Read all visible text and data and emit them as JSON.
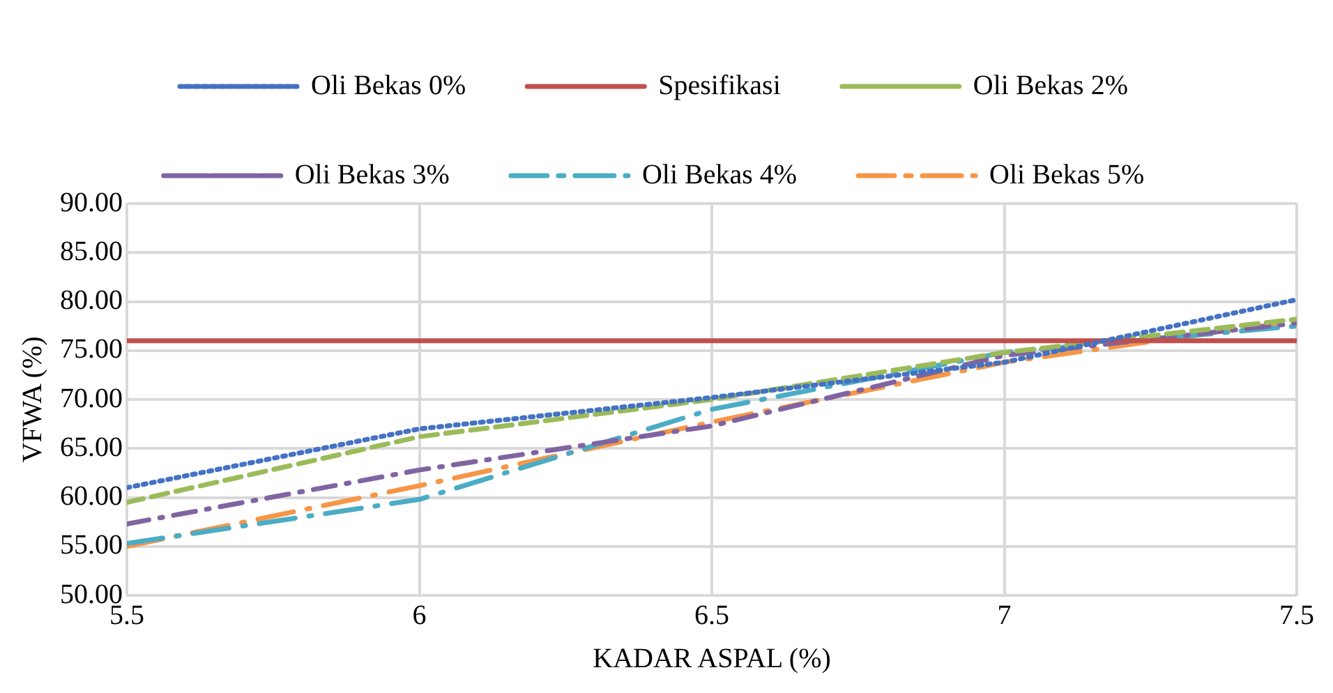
{
  "chart_data": {
    "type": "line",
    "xlabel": "KADAR ASPAL (%)",
    "ylabel": "VFWA (%)",
    "x": [
      5.5,
      6,
      6.5,
      7,
      7.5
    ],
    "series": [
      {
        "name": "Oli Bekas 0%",
        "color": "#4472c4",
        "line_style": "dotted",
        "values": [
          61,
          67,
          70.2,
          73.8,
          80.2
        ]
      },
      {
        "name": "Spesifikasi",
        "color": "#c0504d",
        "line_style": "solid",
        "values": [
          76,
          76,
          76,
          76,
          76
        ]
      },
      {
        "name": "Oli Bekas 2%",
        "color": "#9bbb59",
        "line_style": "dashed",
        "values": [
          59.5,
          66.2,
          70,
          74.8,
          78.2
        ]
      },
      {
        "name": "Oli Bekas 3%",
        "color": "#8064a2",
        "line_style": "dashdot",
        "values": [
          57.3,
          62.8,
          67.3,
          74.5,
          77.8
        ]
      },
      {
        "name": "Oli Bekas 4%",
        "color": "#4bacc6",
        "line_style": "longdashdot",
        "values": [
          55.3,
          59.8,
          69,
          74.8,
          77.5
        ]
      },
      {
        "name": "Oli Bekas 5%",
        "color": "#f79646",
        "line_style": "longdashdot",
        "values": [
          55,
          61.2,
          67.7,
          73.8,
          78
        ]
      }
    ],
    "xlim": [
      5.5,
      7.5
    ],
    "xticks": [
      5.5,
      6,
      6.5,
      7,
      7.5
    ],
    "ylim": [
      50,
      90
    ],
    "yticks": [
      {
        "value": 50,
        "label": "50.00"
      },
      {
        "value": 55,
        "label": "55.00"
      },
      {
        "value": 60,
        "label": "60.00"
      },
      {
        "value": 65,
        "label": "65.00"
      },
      {
        "value": 70,
        "label": "70.00"
      },
      {
        "value": 75,
        "label": "75.00"
      },
      {
        "value": 80,
        "label": "80.00"
      },
      {
        "value": 85,
        "label": "85.00"
      },
      {
        "value": 90,
        "label": "90.00"
      }
    ],
    "grid": true,
    "legend": "top",
    "marker": "none"
  }
}
